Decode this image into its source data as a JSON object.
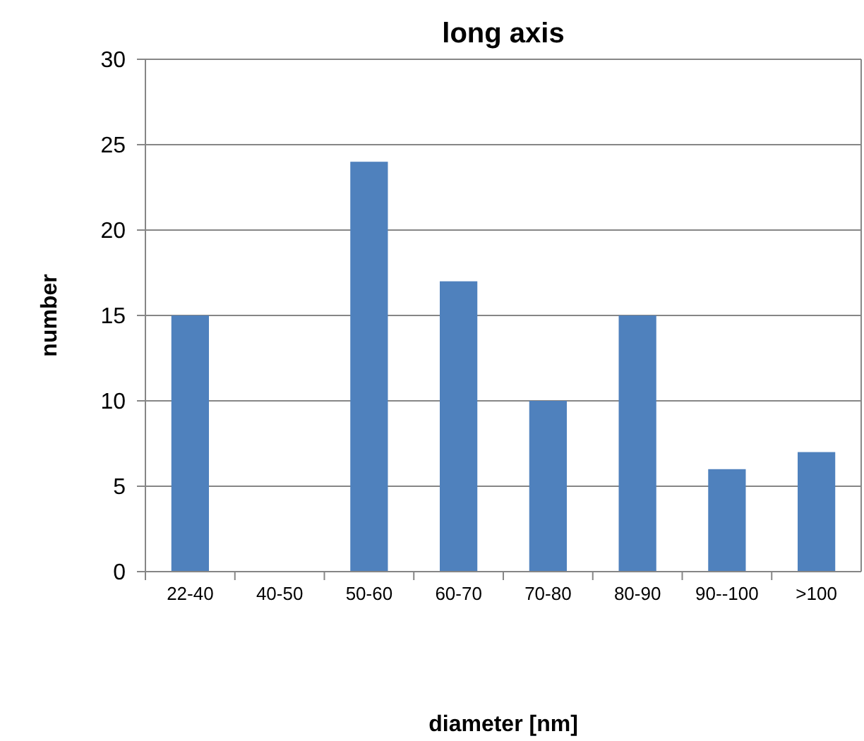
{
  "chart_data": {
    "type": "bar",
    "title": "long axis",
    "xlabel": "diameter [nm]",
    "ylabel": "number",
    "categories": [
      "22-40",
      "40-50",
      "50-60",
      "60-70",
      "70-80",
      "80-90",
      "90--100",
      ">100"
    ],
    "values": [
      15,
      0,
      24,
      17,
      10,
      15,
      6,
      7
    ],
    "color": "#4f81bd",
    "ylim": [
      0,
      30
    ],
    "yticks": [
      0,
      5,
      10,
      15,
      20,
      25,
      30
    ],
    "grid": "y"
  }
}
